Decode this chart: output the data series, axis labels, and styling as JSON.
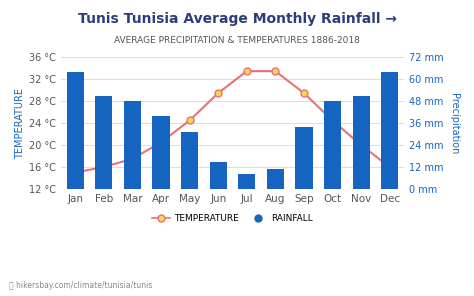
{
  "title": "Tunis Tunisia Average Monthly Rainfall →",
  "subtitle": "AVERAGE PRECIPITATION & TEMPERATURES 1886-2018",
  "months": [
    "Jan",
    "Feb",
    "Mar",
    "Apr",
    "May",
    "Jun",
    "Jul",
    "Aug",
    "Sep",
    "Oct",
    "Nov",
    "Dec"
  ],
  "rainfall_mm": [
    64,
    51,
    48,
    40,
    31,
    15,
    8,
    11,
    34,
    48,
    51,
    64
  ],
  "temperature_c": [
    15.0,
    16.0,
    17.5,
    20.5,
    24.5,
    29.5,
    33.5,
    33.5,
    29.5,
    24.5,
    20.0,
    16.0
  ],
  "bar_color": "#1565C0",
  "line_color": "#E57373",
  "marker_face": "#FFD54F",
  "marker_edge": "#E57373",
  "bg_color": "#FFFFFF",
  "temp_ylim": [
    12,
    36
  ],
  "temp_yticks": [
    12,
    16,
    20,
    24,
    28,
    32,
    36
  ],
  "rain_ylim": [
    0,
    72
  ],
  "rain_yticks": [
    0,
    12,
    24,
    36,
    48,
    60,
    72
  ],
  "left_ylabel": "TEMPERATURE",
  "right_ylabel": "Precipitation",
  "watermark": "hikersbay.com/climate/tunisia/tunis",
  "grid_color": "#DDDDDD",
  "title_color": "#2c3e7a",
  "subtitle_color": "#555555",
  "axis_label_color": "#1565C0",
  "tick_color": "#555555"
}
